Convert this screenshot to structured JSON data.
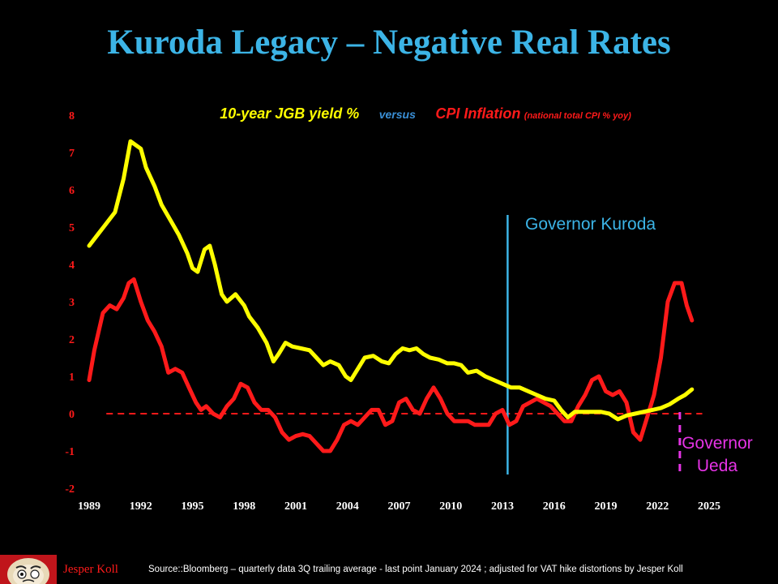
{
  "title": "Kuroda Legacy – Negative Real Rates",
  "legend": {
    "yield_label": "10-year JGB yield %",
    "versus": "versus",
    "cpi_label": "CPI Inflation",
    "cpi_sub": "(national total CPI % yoy)"
  },
  "annotations": {
    "kuroda": "Governor Kuroda",
    "ueda_line1": "Governor",
    "ueda_line2": "Ueda"
  },
  "footer": {
    "author": "Jesper Koll",
    "source": "Source::Bloomberg – quarterly data 3Q trailing average  - last point January 2024 ; adjusted for VAT hike distortions by Jesper Koll"
  },
  "colors": {
    "title": "#3cb4e6",
    "yield": "#ffff00",
    "cpi": "#ff1a1a",
    "kuroda": "#3cb4e6",
    "ueda": "#e633e6",
    "background": "#000000"
  },
  "chart_data": {
    "type": "line",
    "xlim": [
      1989,
      2025
    ],
    "ylim": [
      -2,
      8
    ],
    "x_ticks": [
      "1989",
      "1992",
      "1995",
      "1998",
      "2001",
      "2004",
      "2007",
      "2010",
      "2013",
      "2016",
      "2019",
      "2022",
      "2025"
    ],
    "y_ticks": [
      "8",
      "7",
      "6",
      "5",
      "4",
      "3",
      "2",
      "1",
      "0",
      "-1",
      "-2"
    ],
    "zero_line": 0,
    "kuroda_year": 2013.3,
    "ueda_year": 2023.3,
    "series": [
      {
        "name": "10-year JGB yield %",
        "color": "#ffff00",
        "points": [
          [
            1989.0,
            4.5
          ],
          [
            1989.5,
            4.8
          ],
          [
            1990.0,
            5.1
          ],
          [
            1990.5,
            5.4
          ],
          [
            1991.0,
            6.3
          ],
          [
            1991.4,
            7.3
          ],
          [
            1992.0,
            7.1
          ],
          [
            1992.3,
            6.6
          ],
          [
            1992.8,
            6.1
          ],
          [
            1993.2,
            5.6
          ],
          [
            1993.7,
            5.2
          ],
          [
            1994.2,
            4.8
          ],
          [
            1994.7,
            4.3
          ],
          [
            1995.0,
            3.9
          ],
          [
            1995.3,
            3.8
          ],
          [
            1995.7,
            4.4
          ],
          [
            1996.0,
            4.5
          ],
          [
            1996.3,
            4.0
          ],
          [
            1996.7,
            3.2
          ],
          [
            1997.0,
            3.0
          ],
          [
            1997.5,
            3.2
          ],
          [
            1998.0,
            2.9
          ],
          [
            1998.3,
            2.6
          ],
          [
            1998.8,
            2.3
          ],
          [
            1999.3,
            1.9
          ],
          [
            1999.7,
            1.4
          ],
          [
            2000.0,
            1.6
          ],
          [
            2000.4,
            1.9
          ],
          [
            2000.8,
            1.8
          ],
          [
            2001.3,
            1.75
          ],
          [
            2001.8,
            1.7
          ],
          [
            2002.2,
            1.5
          ],
          [
            2002.6,
            1.3
          ],
          [
            2003.0,
            1.4
          ],
          [
            2003.5,
            1.3
          ],
          [
            2003.9,
            1.0
          ],
          [
            2004.2,
            0.9
          ],
          [
            2004.6,
            1.2
          ],
          [
            2005.0,
            1.5
          ],
          [
            2005.5,
            1.55
          ],
          [
            2006.0,
            1.4
          ],
          [
            2006.4,
            1.35
          ],
          [
            2006.8,
            1.6
          ],
          [
            2007.2,
            1.75
          ],
          [
            2007.6,
            1.7
          ],
          [
            2008.0,
            1.75
          ],
          [
            2008.4,
            1.6
          ],
          [
            2008.8,
            1.5
          ],
          [
            2009.3,
            1.45
          ],
          [
            2009.8,
            1.35
          ],
          [
            2010.2,
            1.35
          ],
          [
            2010.6,
            1.3
          ],
          [
            2011.0,
            1.1
          ],
          [
            2011.5,
            1.15
          ],
          [
            2012.0,
            1.0
          ],
          [
            2012.5,
            0.9
          ],
          [
            2013.0,
            0.8
          ],
          [
            2013.5,
            0.7
          ],
          [
            2014.0,
            0.7
          ],
          [
            2014.5,
            0.6
          ],
          [
            2015.0,
            0.5
          ],
          [
            2015.5,
            0.4
          ],
          [
            2016.0,
            0.35
          ],
          [
            2016.4,
            0.1
          ],
          [
            2016.8,
            -0.1
          ],
          [
            2017.2,
            0.05
          ],
          [
            2017.7,
            0.05
          ],
          [
            2018.2,
            0.05
          ],
          [
            2018.7,
            0.05
          ],
          [
            2019.2,
            0.0
          ],
          [
            2019.7,
            -0.15
          ],
          [
            2020.2,
            -0.05
          ],
          [
            2020.7,
            0.0
          ],
          [
            2021.2,
            0.05
          ],
          [
            2021.7,
            0.1
          ],
          [
            2022.2,
            0.15
          ],
          [
            2022.7,
            0.25
          ],
          [
            2023.2,
            0.4
          ],
          [
            2023.6,
            0.5
          ],
          [
            2024.0,
            0.65
          ]
        ]
      },
      {
        "name": "CPI Inflation",
        "color": "#ff1a1a",
        "points": [
          [
            1989.0,
            0.9
          ],
          [
            1989.3,
            1.7
          ],
          [
            1989.8,
            2.7
          ],
          [
            1990.2,
            2.9
          ],
          [
            1990.6,
            2.8
          ],
          [
            1991.0,
            3.1
          ],
          [
            1991.3,
            3.5
          ],
          [
            1991.6,
            3.6
          ],
          [
            1992.0,
            3.0
          ],
          [
            1992.4,
            2.5
          ],
          [
            1992.8,
            2.2
          ],
          [
            1993.2,
            1.8
          ],
          [
            1993.6,
            1.1
          ],
          [
            1994.0,
            1.2
          ],
          [
            1994.4,
            1.1
          ],
          [
            1994.8,
            0.7
          ],
          [
            1995.2,
            0.3
          ],
          [
            1995.5,
            0.1
          ],
          [
            1995.8,
            0.2
          ],
          [
            1996.2,
            0.0
          ],
          [
            1996.6,
            -0.1
          ],
          [
            1997.0,
            0.2
          ],
          [
            1997.4,
            0.4
          ],
          [
            1997.8,
            0.8
          ],
          [
            1998.2,
            0.7
          ],
          [
            1998.6,
            0.3
          ],
          [
            1999.0,
            0.1
          ],
          [
            1999.4,
            0.1
          ],
          [
            1999.8,
            -0.1
          ],
          [
            2000.2,
            -0.5
          ],
          [
            2000.6,
            -0.7
          ],
          [
            2001.0,
            -0.6
          ],
          [
            2001.4,
            -0.55
          ],
          [
            2001.8,
            -0.6
          ],
          [
            2002.2,
            -0.8
          ],
          [
            2002.6,
            -1.0
          ],
          [
            2003.0,
            -1.0
          ],
          [
            2003.4,
            -0.7
          ],
          [
            2003.8,
            -0.3
          ],
          [
            2004.2,
            -0.2
          ],
          [
            2004.6,
            -0.3
          ],
          [
            2005.0,
            -0.1
          ],
          [
            2005.4,
            0.1
          ],
          [
            2005.8,
            0.1
          ],
          [
            2006.2,
            -0.3
          ],
          [
            2006.6,
            -0.2
          ],
          [
            2007.0,
            0.3
          ],
          [
            2007.4,
            0.4
          ],
          [
            2007.8,
            0.1
          ],
          [
            2008.2,
            0.0
          ],
          [
            2008.6,
            0.4
          ],
          [
            2009.0,
            0.7
          ],
          [
            2009.4,
            0.4
          ],
          [
            2009.8,
            0.0
          ],
          [
            2010.2,
            -0.2
          ],
          [
            2010.6,
            -0.2
          ],
          [
            2011.0,
            -0.2
          ],
          [
            2011.4,
            -0.3
          ],
          [
            2011.8,
            -0.3
          ],
          [
            2012.2,
            -0.3
          ],
          [
            2012.6,
            0.0
          ],
          [
            2013.0,
            0.1
          ],
          [
            2013.4,
            -0.3
          ],
          [
            2013.8,
            -0.2
          ],
          [
            2014.2,
            0.2
          ],
          [
            2014.6,
            0.3
          ],
          [
            2015.0,
            0.4
          ],
          [
            2015.4,
            0.3
          ],
          [
            2015.8,
            0.2
          ],
          [
            2016.2,
            0.0
          ],
          [
            2016.6,
            -0.2
          ],
          [
            2017.0,
            -0.2
          ],
          [
            2017.4,
            0.2
          ],
          [
            2017.8,
            0.5
          ],
          [
            2018.2,
            0.9
          ],
          [
            2018.6,
            1.0
          ],
          [
            2019.0,
            0.6
          ],
          [
            2019.4,
            0.5
          ],
          [
            2019.8,
            0.6
          ],
          [
            2020.2,
            0.3
          ],
          [
            2020.6,
            -0.5
          ],
          [
            2021.0,
            -0.7
          ],
          [
            2021.4,
            -0.1
          ],
          [
            2021.8,
            0.5
          ],
          [
            2022.2,
            1.5
          ],
          [
            2022.6,
            3.0
          ],
          [
            2023.0,
            3.5
          ],
          [
            2023.4,
            3.5
          ],
          [
            2023.7,
            2.9
          ],
          [
            2024.0,
            2.5
          ]
        ]
      }
    ]
  }
}
